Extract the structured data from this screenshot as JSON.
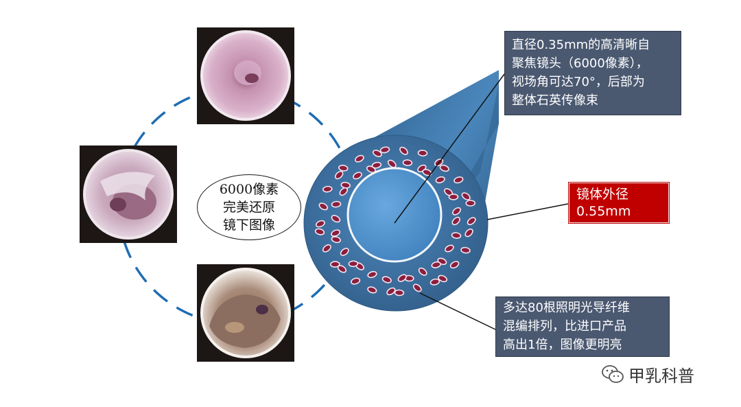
{
  "center_label": "6000像素\n完美还原\n镜下图像",
  "callouts": {
    "lens": "直径0.35mm的高清晰自\n聚焦镜头（6000像素），\n视场角可达70°，后部为\n整体石英传像束",
    "outer_diameter": "镜体外径\n0.55mm",
    "fibers": "多达80根照明光导纤维\n混编排列，比进口产品\n高出1倍，图像更明亮"
  },
  "watermark": {
    "text": "甲乳科普",
    "icon": "wechat-icon"
  },
  "images": [
    {
      "name": "endoscope-image-top",
      "description_icon": "endoscopic-view"
    },
    {
      "name": "endoscope-image-left",
      "description_icon": "endoscopic-view"
    },
    {
      "name": "endoscope-image-bottom",
      "description_icon": "endoscopic-view"
    }
  ],
  "fiber_count": 80,
  "colors": {
    "dash_circle": "#1f6db3",
    "cylinder_body": "#3b6f9e",
    "cylinder_face": "#3f78aa",
    "lens": "#4f93cf",
    "fiber_fill": "#8b1e3f",
    "callout_dark": "#4a5870",
    "callout_red": "#c00000"
  }
}
